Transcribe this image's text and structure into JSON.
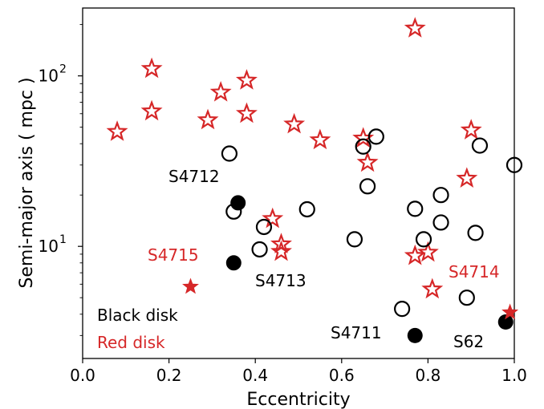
{
  "chart_data": {
    "type": "scatter",
    "xlabel": "Eccentricity",
    "ylabel": "Semi-major axis ( mpc )",
    "xlim": [
      0.0,
      1.0
    ],
    "ylim": [
      2.2,
      250
    ],
    "yscale": "log",
    "grid": false,
    "xticks": [
      "0.0",
      "0.2",
      "0.4",
      "0.6",
      "0.8",
      "1.0"
    ],
    "yticks": [
      {
        "value": 10,
        "base": "10",
        "exp": "1"
      },
      {
        "value": 100,
        "base": "10",
        "exp": "2"
      }
    ],
    "colors": {
      "black": "#000000",
      "red": "#d62728"
    },
    "series": [
      {
        "marker": "open-star",
        "color": "#d62728",
        "points": [
          [
            0.08,
            47
          ],
          [
            0.16,
            110
          ],
          [
            0.16,
            62
          ],
          [
            0.29,
            55
          ],
          [
            0.32,
            80
          ],
          [
            0.38,
            94
          ],
          [
            0.38,
            60
          ],
          [
            0.49,
            52
          ],
          [
            0.55,
            42
          ],
          [
            0.65,
            43
          ],
          [
            0.66,
            31
          ],
          [
            0.77,
            190
          ],
          [
            0.9,
            48
          ],
          [
            0.89,
            25
          ],
          [
            0.44,
            14.5
          ],
          [
            0.46,
            10.3
          ],
          [
            0.46,
            9.3
          ],
          [
            0.77,
            8.8
          ],
          [
            0.8,
            9.2
          ],
          [
            0.81,
            5.6
          ]
        ]
      },
      {
        "marker": "open-circle",
        "color": "#000000",
        "points": [
          [
            0.34,
            35
          ],
          [
            0.35,
            16
          ],
          [
            0.42,
            13
          ],
          [
            0.52,
            16.5
          ],
          [
            0.41,
            9.6
          ],
          [
            0.63,
            11
          ],
          [
            0.65,
            38.5
          ],
          [
            0.68,
            44
          ],
          [
            0.66,
            22.5
          ],
          [
            0.77,
            16.6
          ],
          [
            0.79,
            11
          ],
          [
            0.83,
            20
          ],
          [
            0.83,
            13.8
          ],
          [
            0.91,
            12
          ],
          [
            0.92,
            39
          ],
          [
            1.0,
            30
          ],
          [
            0.89,
            5
          ],
          [
            0.74,
            4.3
          ]
        ]
      },
      {
        "marker": "filled-circle",
        "color": "#000000",
        "points": [
          [
            0.36,
            18
          ],
          [
            0.35,
            8
          ],
          [
            0.77,
            3
          ],
          [
            0.98,
            3.6
          ]
        ]
      },
      {
        "marker": "filled-star",
        "color": "#d62728",
        "points": [
          [
            0.25,
            5.8
          ],
          [
            0.99,
            4.1
          ]
        ]
      }
    ],
    "annotations": [
      {
        "text": "S4712",
        "color": "#000000"
      },
      {
        "text": "S4715",
        "color": "#d62728"
      },
      {
        "text": "S4713",
        "color": "#000000"
      },
      {
        "text": "S4714",
        "color": "#d62728"
      },
      {
        "text": "S4711",
        "color": "#000000"
      },
      {
        "text": "S62",
        "color": "#000000"
      },
      {
        "text": "Black disk",
        "color": "#000000"
      },
      {
        "text": "Red disk",
        "color": "#d62728"
      }
    ]
  }
}
